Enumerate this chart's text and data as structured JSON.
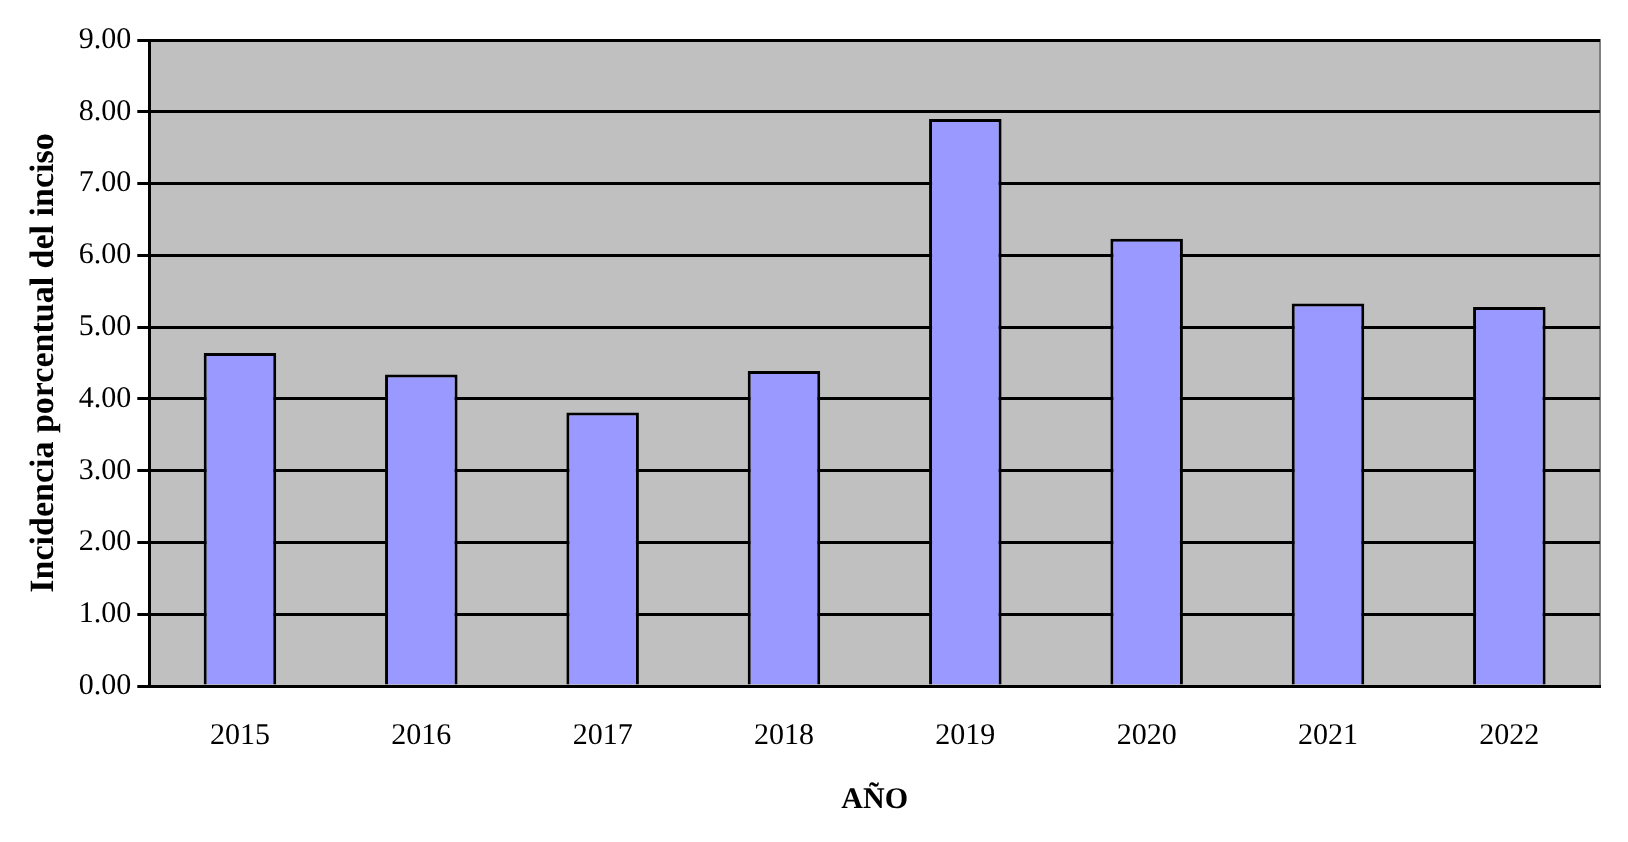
{
  "chart_data": {
    "type": "bar",
    "xlabel": "AÑO",
    "ylabel": "Incidencia porcentual del inciso",
    "categories": [
      "2015",
      "2016",
      "2017",
      "2018",
      "2019",
      "2020",
      "2021",
      "2022"
    ],
    "values": [
      4.64,
      4.34,
      3.81,
      4.39,
      7.9,
      6.23,
      5.33,
      5.28
    ],
    "color": "#9999ff",
    "ylim": [
      0,
      9
    ],
    "yticks": [
      {
        "value": 0,
        "label": "0.00"
      },
      {
        "value": 1,
        "label": "1.00"
      },
      {
        "value": 2,
        "label": "2.00"
      },
      {
        "value": 3,
        "label": "3.00"
      },
      {
        "value": 4,
        "label": "4.00"
      },
      {
        "value": 5,
        "label": "5.00"
      },
      {
        "value": 6,
        "label": "6.00"
      },
      {
        "value": 7,
        "label": "7.00"
      },
      {
        "value": 8,
        "label": "8.00"
      },
      {
        "value": 9,
        "label": "9.00"
      }
    ],
    "grid": "y",
    "legend": false
  }
}
